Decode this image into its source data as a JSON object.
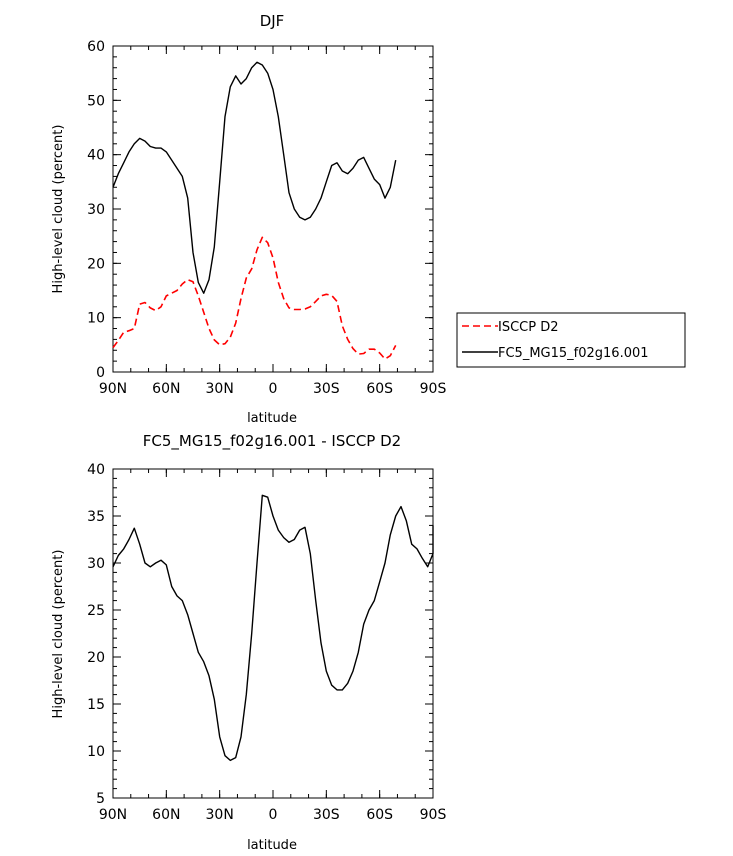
{
  "chart_data": [
    {
      "type": "line",
      "title": "DJF",
      "xlabel": "latitude",
      "ylabel": "High-level cloud (percent)",
      "xlim": [
        90,
        -90
      ],
      "ylim": [
        0,
        60
      ],
      "xticks": [
        90,
        60,
        30,
        0,
        -30,
        -60,
        -90
      ],
      "xtick_labels": [
        "90N",
        "60N",
        "30N",
        "0",
        "30S",
        "60S",
        "90S"
      ],
      "yticks": [
        0,
        10,
        20,
        30,
        40,
        50,
        60
      ],
      "ytick_labels": [
        "0",
        "10",
        "20",
        "30",
        "40",
        "50",
        "60"
      ],
      "legend": "right",
      "series": [
        {
          "name": "ISCCP D2",
          "color": "#ff0000",
          "style": "dashed",
          "points": [
            [
              90,
              4.5
            ],
            [
              87,
              5.8
            ],
            [
              84,
              7.3
            ],
            [
              81,
              7.6
            ],
            [
              78,
              8.0
            ],
            [
              75,
              12.5
            ],
            [
              72,
              12.8
            ],
            [
              69,
              11.8
            ],
            [
              66,
              11.3
            ],
            [
              63,
              12.0
            ],
            [
              60,
              14.0
            ],
            [
              57,
              14.5
            ],
            [
              54,
              15.0
            ],
            [
              51,
              16.2
            ],
            [
              48,
              17.0
            ],
            [
              45,
              16.6
            ],
            [
              42,
              14.0
            ],
            [
              39,
              11.0
            ],
            [
              36,
              8.0
            ],
            [
              33,
              5.9
            ],
            [
              30,
              5.0
            ],
            [
              27,
              5.2
            ],
            [
              24,
              6.4
            ],
            [
              21,
              9.0
            ],
            [
              18,
              13.5
            ],
            [
              15,
              17.3
            ],
            [
              12,
              19.0
            ],
            [
              9,
              22.5
            ],
            [
              6,
              24.8
            ],
            [
              3,
              23.8
            ],
            [
              0,
              21.0
            ],
            [
              -3,
              16.5
            ],
            [
              -6,
              13.5
            ],
            [
              -9,
              11.8
            ],
            [
              -12,
              11.5
            ],
            [
              -15,
              11.5
            ],
            [
              -18,
              11.6
            ],
            [
              -21,
              12.0
            ],
            [
              -24,
              13.0
            ],
            [
              -27,
              14.0
            ],
            [
              -30,
              14.3
            ],
            [
              -33,
              14.1
            ],
            [
              -36,
              13.0
            ],
            [
              -39,
              8.5
            ],
            [
              -42,
              6.0
            ],
            [
              -45,
              4.3
            ],
            [
              -48,
              3.3
            ],
            [
              -51,
              3.4
            ],
            [
              -54,
              4.2
            ],
            [
              -57,
              4.2
            ],
            [
              -60,
              3.5
            ],
            [
              -63,
              2.4
            ],
            [
              -66,
              3.0
            ],
            [
              -69,
              4.9
            ]
          ]
        },
        {
          "name": "FC5_MG15_f02g16.001",
          "color": "#000000",
          "style": "solid",
          "points": [
            [
              90,
              34.0
            ],
            [
              87,
              36.5
            ],
            [
              84,
              38.5
            ],
            [
              81,
              40.5
            ],
            [
              78,
              42.0
            ],
            [
              75,
              43.0
            ],
            [
              72,
              42.5
            ],
            [
              69,
              41.5
            ],
            [
              66,
              41.2
            ],
            [
              63,
              41.2
            ],
            [
              60,
              40.5
            ],
            [
              57,
              39.0
            ],
            [
              54,
              37.5
            ],
            [
              51,
              36.0
            ],
            [
              48,
              32.0
            ],
            [
              45,
              22.0
            ],
            [
              42,
              16.5
            ],
            [
              39,
              14.5
            ],
            [
              36,
              17.0
            ],
            [
              33,
              23.0
            ],
            [
              30,
              35.0
            ],
            [
              27,
              47.0
            ],
            [
              24,
              52.5
            ],
            [
              21,
              54.5
            ],
            [
              18,
              53.0
            ],
            [
              15,
              54.0
            ],
            [
              12,
              56.0
            ],
            [
              9,
              57.0
            ],
            [
              6,
              56.5
            ],
            [
              3,
              55.0
            ],
            [
              0,
              52.0
            ],
            [
              -3,
              47.0
            ],
            [
              -6,
              40.0
            ],
            [
              -9,
              33.0
            ],
            [
              -12,
              30.0
            ],
            [
              -15,
              28.5
            ],
            [
              -18,
              28.0
            ],
            [
              -21,
              28.5
            ],
            [
              -24,
              30.0
            ],
            [
              -27,
              32.0
            ],
            [
              -30,
              35.0
            ],
            [
              -33,
              38.0
            ],
            [
              -36,
              38.5
            ],
            [
              -39,
              37.0
            ],
            [
              -42,
              36.5
            ],
            [
              -45,
              37.5
            ],
            [
              -48,
              39.0
            ],
            [
              -51,
              39.5
            ],
            [
              -54,
              37.5
            ],
            [
              -57,
              35.5
            ],
            [
              -60,
              34.5
            ],
            [
              -63,
              32.0
            ],
            [
              -66,
              34.0
            ],
            [
              -69,
              39.0
            ]
          ]
        }
      ]
    },
    {
      "type": "line",
      "title": "FC5_MG15_f02g16.001 - ISCCP D2",
      "xlabel": "latitude",
      "ylabel": "High-level cloud (percent)",
      "xlim": [
        90,
        -90
      ],
      "ylim": [
        5,
        40
      ],
      "xticks": [
        90,
        60,
        30,
        0,
        -30,
        -60,
        -90
      ],
      "xtick_labels": [
        "90N",
        "60N",
        "30N",
        "0",
        "30S",
        "60S",
        "90S"
      ],
      "yticks": [
        5,
        10,
        15,
        20,
        25,
        30,
        35,
        40
      ],
      "ytick_labels": [
        "5",
        "10",
        "15",
        "20",
        "25",
        "30",
        "35",
        "40"
      ],
      "series": [
        {
          "color": "#000000",
          "style": "solid",
          "points": [
            [
              90,
              29.6
            ],
            [
              87,
              30.8
            ],
            [
              84,
              31.5
            ],
            [
              81,
              32.5
            ],
            [
              78,
              33.7
            ],
            [
              75,
              32.0
            ],
            [
              72,
              30.0
            ],
            [
              69,
              29.6
            ],
            [
              66,
              30.0
            ],
            [
              63,
              30.3
            ],
            [
              60,
              29.8
            ],
            [
              57,
              27.5
            ],
            [
              54,
              26.5
            ],
            [
              51,
              26.0
            ],
            [
              48,
              24.5
            ],
            [
              45,
              22.5
            ],
            [
              42,
              20.5
            ],
            [
              39,
              19.5
            ],
            [
              36,
              18.0
            ],
            [
              33,
              15.5
            ],
            [
              30,
              11.5
            ],
            [
              27,
              9.5
            ],
            [
              24,
              9.0
            ],
            [
              21,
              9.3
            ],
            [
              18,
              11.5
            ],
            [
              15,
              16.0
            ],
            [
              12,
              22.5
            ],
            [
              9,
              30.0
            ],
            [
              6,
              37.2
            ],
            [
              3,
              37.0
            ],
            [
              0,
              35.0
            ],
            [
              -3,
              33.5
            ],
            [
              -6,
              32.7
            ],
            [
              -9,
              32.2
            ],
            [
              -12,
              32.5
            ],
            [
              -15,
              33.5
            ],
            [
              -18,
              33.8
            ],
            [
              -21,
              31.0
            ],
            [
              -24,
              26.0
            ],
            [
              -27,
              21.5
            ],
            [
              -30,
              18.5
            ],
            [
              -33,
              17.0
            ],
            [
              -36,
              16.5
            ],
            [
              -39,
              16.5
            ],
            [
              -42,
              17.2
            ],
            [
              -45,
              18.5
            ],
            [
              -48,
              20.5
            ],
            [
              -51,
              23.5
            ],
            [
              -54,
              25.0
            ],
            [
              -57,
              26.0
            ],
            [
              -60,
              28.0
            ],
            [
              -63,
              30.0
            ],
            [
              -66,
              33.0
            ],
            [
              -69,
              35.0
            ],
            [
              -72,
              36.0
            ],
            [
              -75,
              34.5
            ],
            [
              -78,
              32.0
            ],
            [
              -81,
              31.5
            ],
            [
              -84,
              30.5
            ],
            [
              -87,
              29.6
            ],
            [
              -90,
              31.0
            ],
            [
              -90,
              34.0
            ]
          ]
        }
      ]
    }
  ]
}
